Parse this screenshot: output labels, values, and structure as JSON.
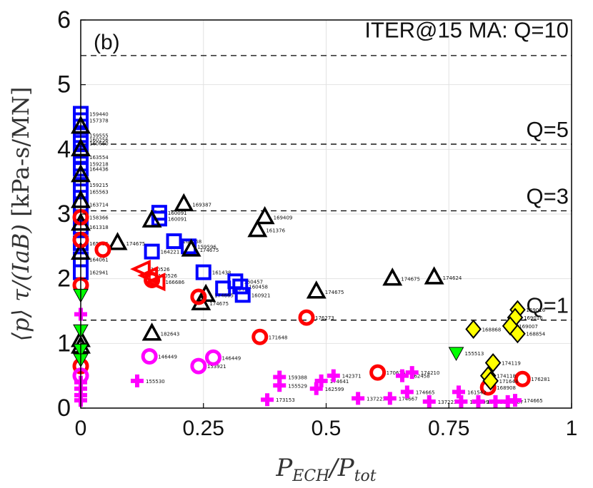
{
  "chart_data": {
    "type": "scatter",
    "title": "",
    "panel_label": "(b)",
    "xlabel": "P_ECH/P_tot",
    "ylabel": "⟨p⟩ τ/(IaB)  [kPa-s/MN]",
    "xlim": [
      0,
      1
    ],
    "ylim": [
      0,
      6
    ],
    "x_ticks": [
      0,
      0.25,
      0.5,
      0.75,
      1
    ],
    "x_tick_labels": [
      "0",
      "0.25",
      "0.5",
      "0.75",
      "1"
    ],
    "y_ticks": [
      0,
      1,
      2,
      3,
      4,
      5,
      6
    ],
    "y_tick_labels": [
      "0",
      "1",
      "2",
      "3",
      "4",
      "5",
      "6"
    ],
    "grid": true,
    "reference_lines": [
      {
        "label": "ITER@15 MA: Q=10",
        "y": 5.45
      },
      {
        "label": "Q=5",
        "y": 4.08
      },
      {
        "label": "Q=3",
        "y": 3.05
      },
      {
        "label": "Q=1",
        "y": 1.36
      }
    ],
    "series": [
      {
        "marker": "square",
        "color": "#0000ff",
        "points": [
          {
            "x": 0.0,
            "y": 4.55,
            "label": "159440"
          },
          {
            "x": 0.0,
            "y": 4.45,
            "label": "157378"
          },
          {
            "x": 0.0,
            "y": 4.22,
            "label": "159555"
          },
          {
            "x": 0.0,
            "y": 4.15,
            "label": "160256"
          },
          {
            "x": 0.0,
            "y": 4.1,
            "label": "160660"
          },
          {
            "x": 0.0,
            "y": 3.88,
            "label": "163554"
          },
          {
            "x": 0.0,
            "y": 3.78,
            "label": "159218"
          },
          {
            "x": 0.0,
            "y": 3.7,
            "label": "164436"
          },
          {
            "x": 0.0,
            "y": 3.45,
            "label": "159215"
          },
          {
            "x": 0.0,
            "y": 3.35,
            "label": "165563"
          },
          {
            "x": 0.0,
            "y": 3.15,
            "label": "163714"
          },
          {
            "x": 0.0,
            "y": 2.95,
            "label": "158366"
          },
          {
            "x": 0.0,
            "y": 2.8,
            "label": "161318"
          },
          {
            "x": 0.0,
            "y": 2.55,
            "label": "165556"
          },
          {
            "x": 0.0,
            "y": 2.3,
            "label": "164061"
          },
          {
            "x": 0.0,
            "y": 2.1,
            "label": "162941"
          },
          {
            "x": 0.16,
            "y": 3.02,
            "label": "160091"
          },
          {
            "x": 0.16,
            "y": 2.93,
            "label": "160091"
          },
          {
            "x": 0.145,
            "y": 2.42,
            "label": "164221"
          },
          {
            "x": 0.19,
            "y": 2.58,
            "label": "160458"
          },
          {
            "x": 0.22,
            "y": 2.5,
            "label": "159596"
          },
          {
            "x": 0.25,
            "y": 2.1,
            "label": "161438"
          },
          {
            "x": 0.29,
            "y": 1.85,
            "label": "160456"
          },
          {
            "x": 0.315,
            "y": 1.96,
            "label": "160457"
          },
          {
            "x": 0.325,
            "y": 1.88,
            "label": "160458"
          },
          {
            "x": 0.33,
            "y": 1.75,
            "label": "160921"
          }
        ]
      },
      {
        "marker": "triangle-up",
        "color": "#000000",
        "points": [
          {
            "x": 0.0,
            "y": 4.35,
            "label": ""
          },
          {
            "x": 0.0,
            "y": 4.0,
            "label": ""
          },
          {
            "x": 0.0,
            "y": 3.6,
            "label": ""
          },
          {
            "x": 0.0,
            "y": 3.2,
            "label": ""
          },
          {
            "x": 0.0,
            "y": 2.85,
            "label": ""
          },
          {
            "x": 0.0,
            "y": 2.4,
            "label": ""
          },
          {
            "x": 0.0,
            "y": 1.05,
            "label": ""
          },
          {
            "x": 0.0,
            "y": 0.95,
            "label": ""
          },
          {
            "x": 0.075,
            "y": 2.55,
            "label": "174675"
          },
          {
            "x": 0.145,
            "y": 2.9,
            "label": ""
          },
          {
            "x": 0.21,
            "y": 3.15,
            "label": "169387"
          },
          {
            "x": 0.225,
            "y": 2.45,
            "label": "174675"
          },
          {
            "x": 0.145,
            "y": 1.15,
            "label": "182643"
          },
          {
            "x": 0.245,
            "y": 1.62,
            "label": "174675"
          },
          {
            "x": 0.255,
            "y": 1.75,
            "label": "174665"
          },
          {
            "x": 0.36,
            "y": 2.75,
            "label": "161376"
          },
          {
            "x": 0.375,
            "y": 2.95,
            "label": "169409"
          },
          {
            "x": 0.48,
            "y": 1.8,
            "label": "174675"
          },
          {
            "x": 0.635,
            "y": 2.0,
            "label": "174675"
          },
          {
            "x": 0.72,
            "y": 2.02,
            "label": "174624"
          }
        ]
      },
      {
        "marker": "circle",
        "color": "#ff0000",
        "points": [
          {
            "x": 0.0,
            "y": 2.95,
            "label": ""
          },
          {
            "x": 0.0,
            "y": 2.6,
            "label": ""
          },
          {
            "x": 0.0,
            "y": 1.9,
            "label": ""
          },
          {
            "x": 0.0,
            "y": 0.65,
            "label": ""
          },
          {
            "x": 0.045,
            "y": 2.45,
            "label": ""
          },
          {
            "x": 0.145,
            "y": 1.98,
            "label": ""
          },
          {
            "x": 0.24,
            "y": 1.72,
            "label": ""
          },
          {
            "x": 0.365,
            "y": 1.1,
            "label": "171648"
          },
          {
            "x": 0.46,
            "y": 1.4,
            "label": "176273"
          },
          {
            "x": 0.605,
            "y": 0.55,
            "label": "170676"
          },
          {
            "x": 0.83,
            "y": 0.32,
            "label": "168908"
          },
          {
            "x": 0.9,
            "y": 0.45,
            "label": "176281"
          }
        ]
      },
      {
        "marker": "triangle-left",
        "color": "#ff0000",
        "points": [
          {
            "x": 0.125,
            "y": 2.15,
            "label": "180526"
          },
          {
            "x": 0.14,
            "y": 2.05,
            "label": "180526"
          },
          {
            "x": 0.155,
            "y": 1.95,
            "label": "166686"
          }
        ]
      },
      {
        "marker": "circle",
        "color": "#ff00ff",
        "points": [
          {
            "x": 0.0,
            "y": 0.5,
            "label": ""
          },
          {
            "x": 0.14,
            "y": 0.8,
            "label": "146449"
          },
          {
            "x": 0.24,
            "y": 0.65,
            "label": "153921"
          },
          {
            "x": 0.27,
            "y": 0.78,
            "label": "146449"
          }
        ]
      },
      {
        "marker": "cross",
        "color": "#ff00ff",
        "points": [
          {
            "x": 0.0,
            "y": 1.45,
            "label": ""
          },
          {
            "x": 0.0,
            "y": 0.4,
            "label": ""
          },
          {
            "x": 0.0,
            "y": 0.3,
            "label": ""
          },
          {
            "x": 0.0,
            "y": 0.2,
            "label": ""
          },
          {
            "x": 0.0,
            "y": 0.12,
            "label": ""
          },
          {
            "x": 0.115,
            "y": 0.42,
            "label": "155530"
          },
          {
            "x": 0.38,
            "y": 0.13,
            "label": "173153"
          },
          {
            "x": 0.405,
            "y": 0.48,
            "label": "159388"
          },
          {
            "x": 0.405,
            "y": 0.35,
            "label": "155529"
          },
          {
            "x": 0.48,
            "y": 0.3,
            "label": "162599"
          },
          {
            "x": 0.49,
            "y": 0.42,
            "label": "174641"
          },
          {
            "x": 0.515,
            "y": 0.5,
            "label": "142371"
          },
          {
            "x": 0.565,
            "y": 0.15,
            "label": "137223"
          },
          {
            "x": 0.63,
            "y": 0.15,
            "label": "174667"
          },
          {
            "x": 0.655,
            "y": 0.5,
            "label": "162458"
          },
          {
            "x": 0.665,
            "y": 0.25,
            "label": "174665"
          },
          {
            "x": 0.675,
            "y": 0.55,
            "label": "174210"
          },
          {
            "x": 0.71,
            "y": 0.1,
            "label": "137223"
          },
          {
            "x": 0.77,
            "y": 0.25,
            "label": "161542"
          },
          {
            "x": 0.775,
            "y": 0.1,
            "label": "150809"
          },
          {
            "x": 0.81,
            "y": 0.1,
            "label": "155418"
          },
          {
            "x": 0.845,
            "y": 0.1,
            "label": "174667"
          },
          {
            "x": 0.87,
            "y": 0.1,
            "label": ""
          },
          {
            "x": 0.885,
            "y": 0.12,
            "label": "174665"
          }
        ]
      },
      {
        "marker": "triangle-down",
        "color": "#00ff00",
        "points": [
          {
            "x": 0.0,
            "y": 1.75,
            "label": ""
          },
          {
            "x": 0.0,
            "y": 1.2,
            "label": ""
          },
          {
            "x": 0.0,
            "y": 0.9,
            "label": ""
          },
          {
            "x": 0.0,
            "y": 0.75,
            "label": ""
          },
          {
            "x": 0.765,
            "y": 0.85,
            "label": "155513"
          }
        ]
      },
      {
        "marker": "diamond",
        "color": "#ffff00",
        "points": [
          {
            "x": 0.8,
            "y": 1.22,
            "label": "168868"
          },
          {
            "x": 0.89,
            "y": 1.52,
            "label": "169016"
          },
          {
            "x": 0.885,
            "y": 1.4,
            "label": "169016"
          },
          {
            "x": 0.875,
            "y": 1.27,
            "label": "169007"
          },
          {
            "x": 0.89,
            "y": 1.15,
            "label": "168854"
          },
          {
            "x": 0.84,
            "y": 0.7,
            "label": "174119"
          },
          {
            "x": 0.83,
            "y": 0.5,
            "label": "174118"
          },
          {
            "x": 0.835,
            "y": 0.42,
            "label": "171644"
          }
        ]
      }
    ]
  }
}
